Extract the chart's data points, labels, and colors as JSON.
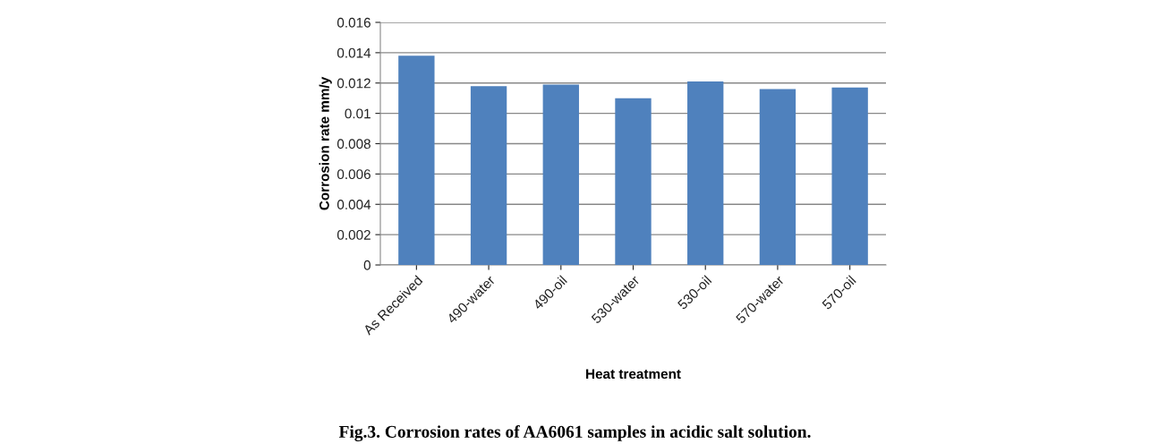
{
  "chart_data": {
    "type": "bar",
    "xlabel": "Heat treatment",
    "ylabel": "Corrosion rate mm/y",
    "categories": [
      "As Received",
      "490-water",
      "490-oil",
      "530-water",
      "530-oil",
      "570-water",
      "570-oil"
    ],
    "values": [
      0.0138,
      0.0118,
      0.0119,
      0.011,
      0.0121,
      0.0116,
      0.0117
    ],
    "color": "#4f81bd",
    "ylim": [
      0,
      0.016
    ],
    "yticks": [
      0,
      0.002,
      0.004,
      0.006,
      0.008,
      0.01,
      0.012,
      0.014,
      0.016
    ],
    "grid": "y",
    "annotations": [
      "Fig.3. Corrosion rates of AA6061 samples in acidic salt solution."
    ]
  }
}
